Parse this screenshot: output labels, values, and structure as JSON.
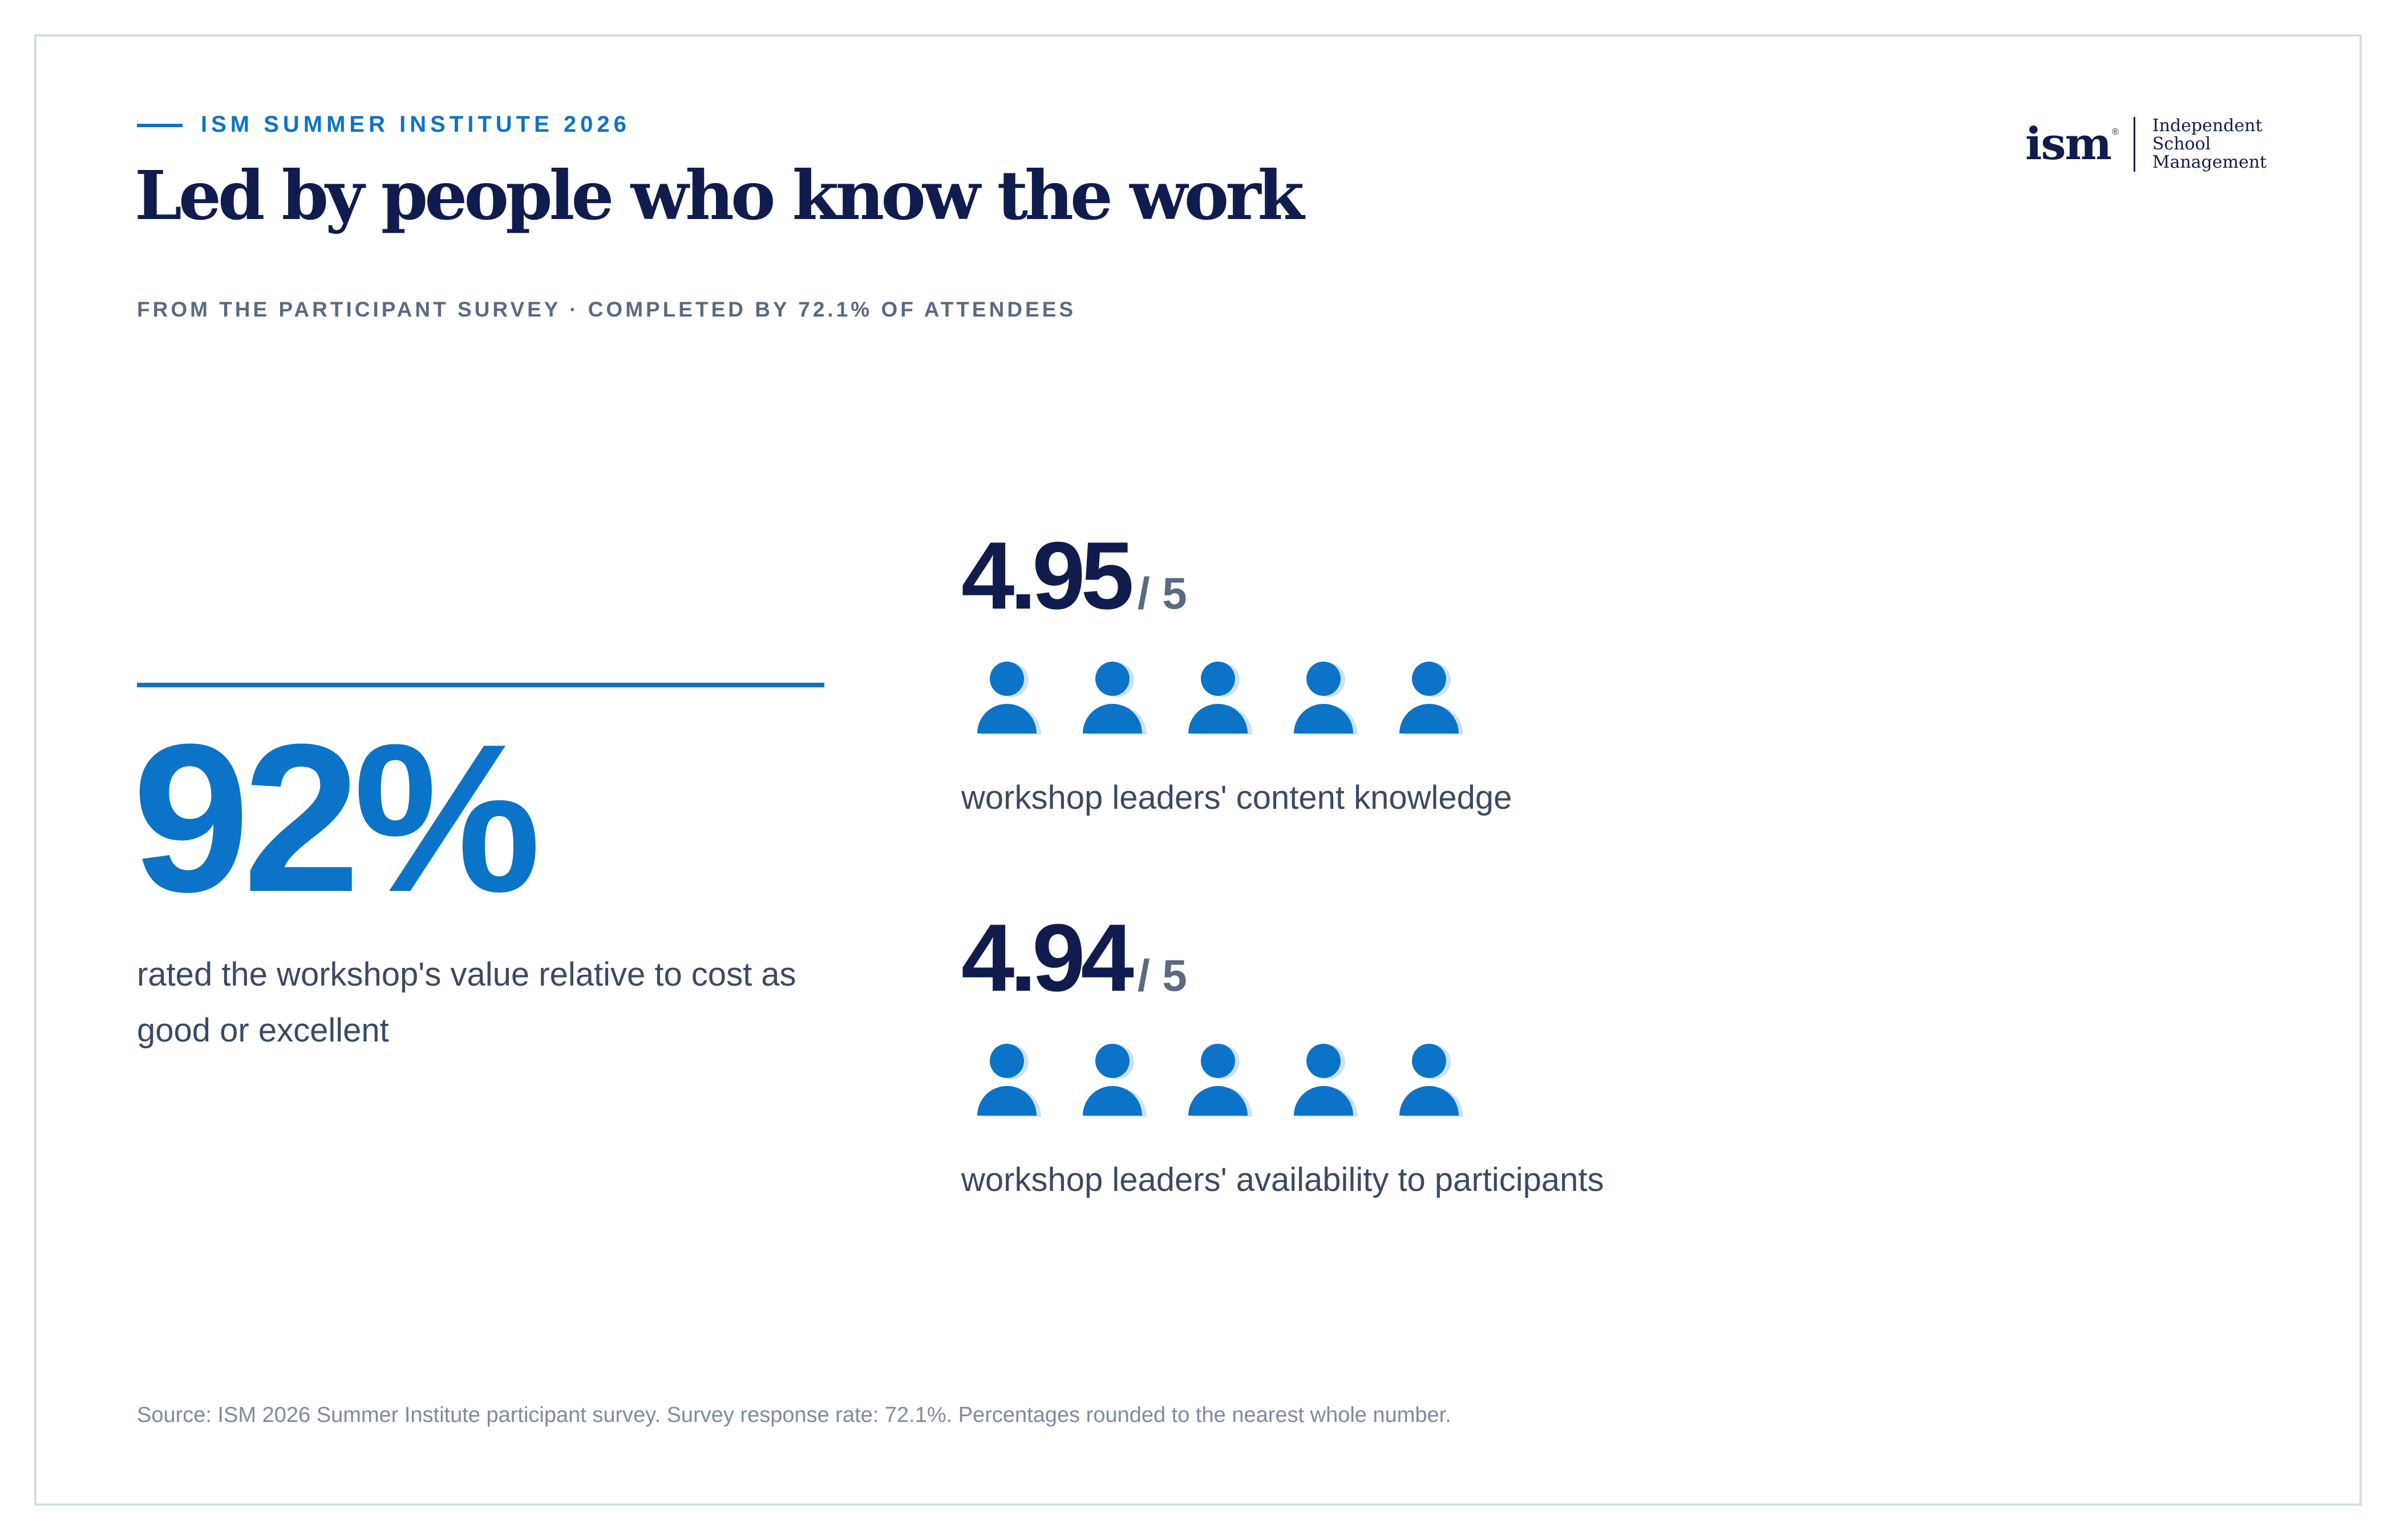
{
  "header": {
    "eyebrow": "ISM SUMMER INSTITUTE 2026",
    "title": "Led by people who know the work",
    "subtitle": "FROM THE PARTICIPANT SURVEY · COMPLETED BY 72.1% OF ATTENDEES"
  },
  "logo": {
    "mark": "ism",
    "registered": "®",
    "line1": "Independent",
    "line2": "School",
    "line3": "Management"
  },
  "headline_stat": {
    "value": "92%",
    "description": "rated the workshop's value relative to cost as good or excellent"
  },
  "ratings": [
    {
      "score": "4.95",
      "max": "/ 5",
      "icons": 5,
      "label": "workshop leaders' content knowledge"
    },
    {
      "score": "4.94",
      "max": "/ 5",
      "icons": 5,
      "label": "workshop leaders' availability to participants"
    }
  ],
  "colors": {
    "accent": "#0b74c8",
    "navy": "#0f1c4d",
    "muted": "#5a6a82",
    "icon_shadow": "#cfe1f1"
  },
  "footer": {
    "source": "Source: ISM 2026 Summer Institute participant survey. Survey response rate: 72.1%. Percentages rounded to the nearest whole number."
  }
}
